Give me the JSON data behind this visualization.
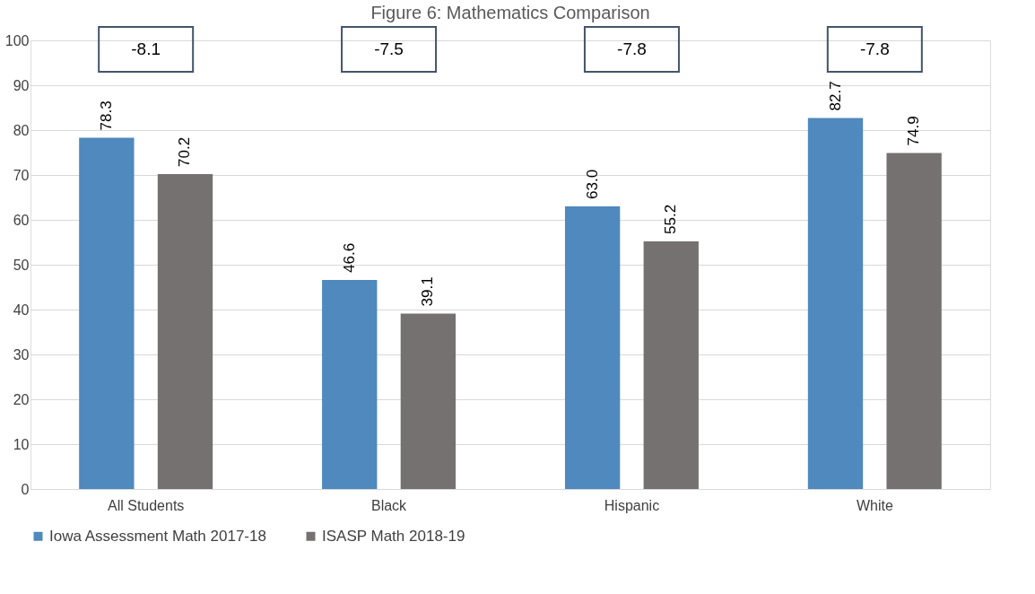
{
  "chart_data": {
    "type": "bar",
    "title": "Figure 6: Mathematics Comparison",
    "categories": [
      "All Students",
      "Black",
      "Hispanic",
      "White"
    ],
    "series": [
      {
        "name": "Iowa Assessment Math 2017-18",
        "color": "#4f89bd",
        "values": [
          78.3,
          46.6,
          63.0,
          82.7
        ],
        "value_labels": [
          "78.3",
          "46.6",
          "63.0",
          "82.7"
        ]
      },
      {
        "name": "ISASP Math 2018-19",
        "color": "#767171",
        "values": [
          70.2,
          39.1,
          55.2,
          74.9
        ],
        "value_labels": [
          "70.2",
          "39.1",
          "55.2",
          "74.9"
        ]
      }
    ],
    "annotations": [
      "-8.1",
      "-7.5",
      "-7.8",
      "-7.8"
    ],
    "ylim": [
      0,
      100
    ],
    "yticks": [
      0,
      10,
      20,
      30,
      40,
      50,
      60,
      70,
      80,
      90,
      100
    ],
    "grid": "y",
    "legend": "bottom"
  }
}
